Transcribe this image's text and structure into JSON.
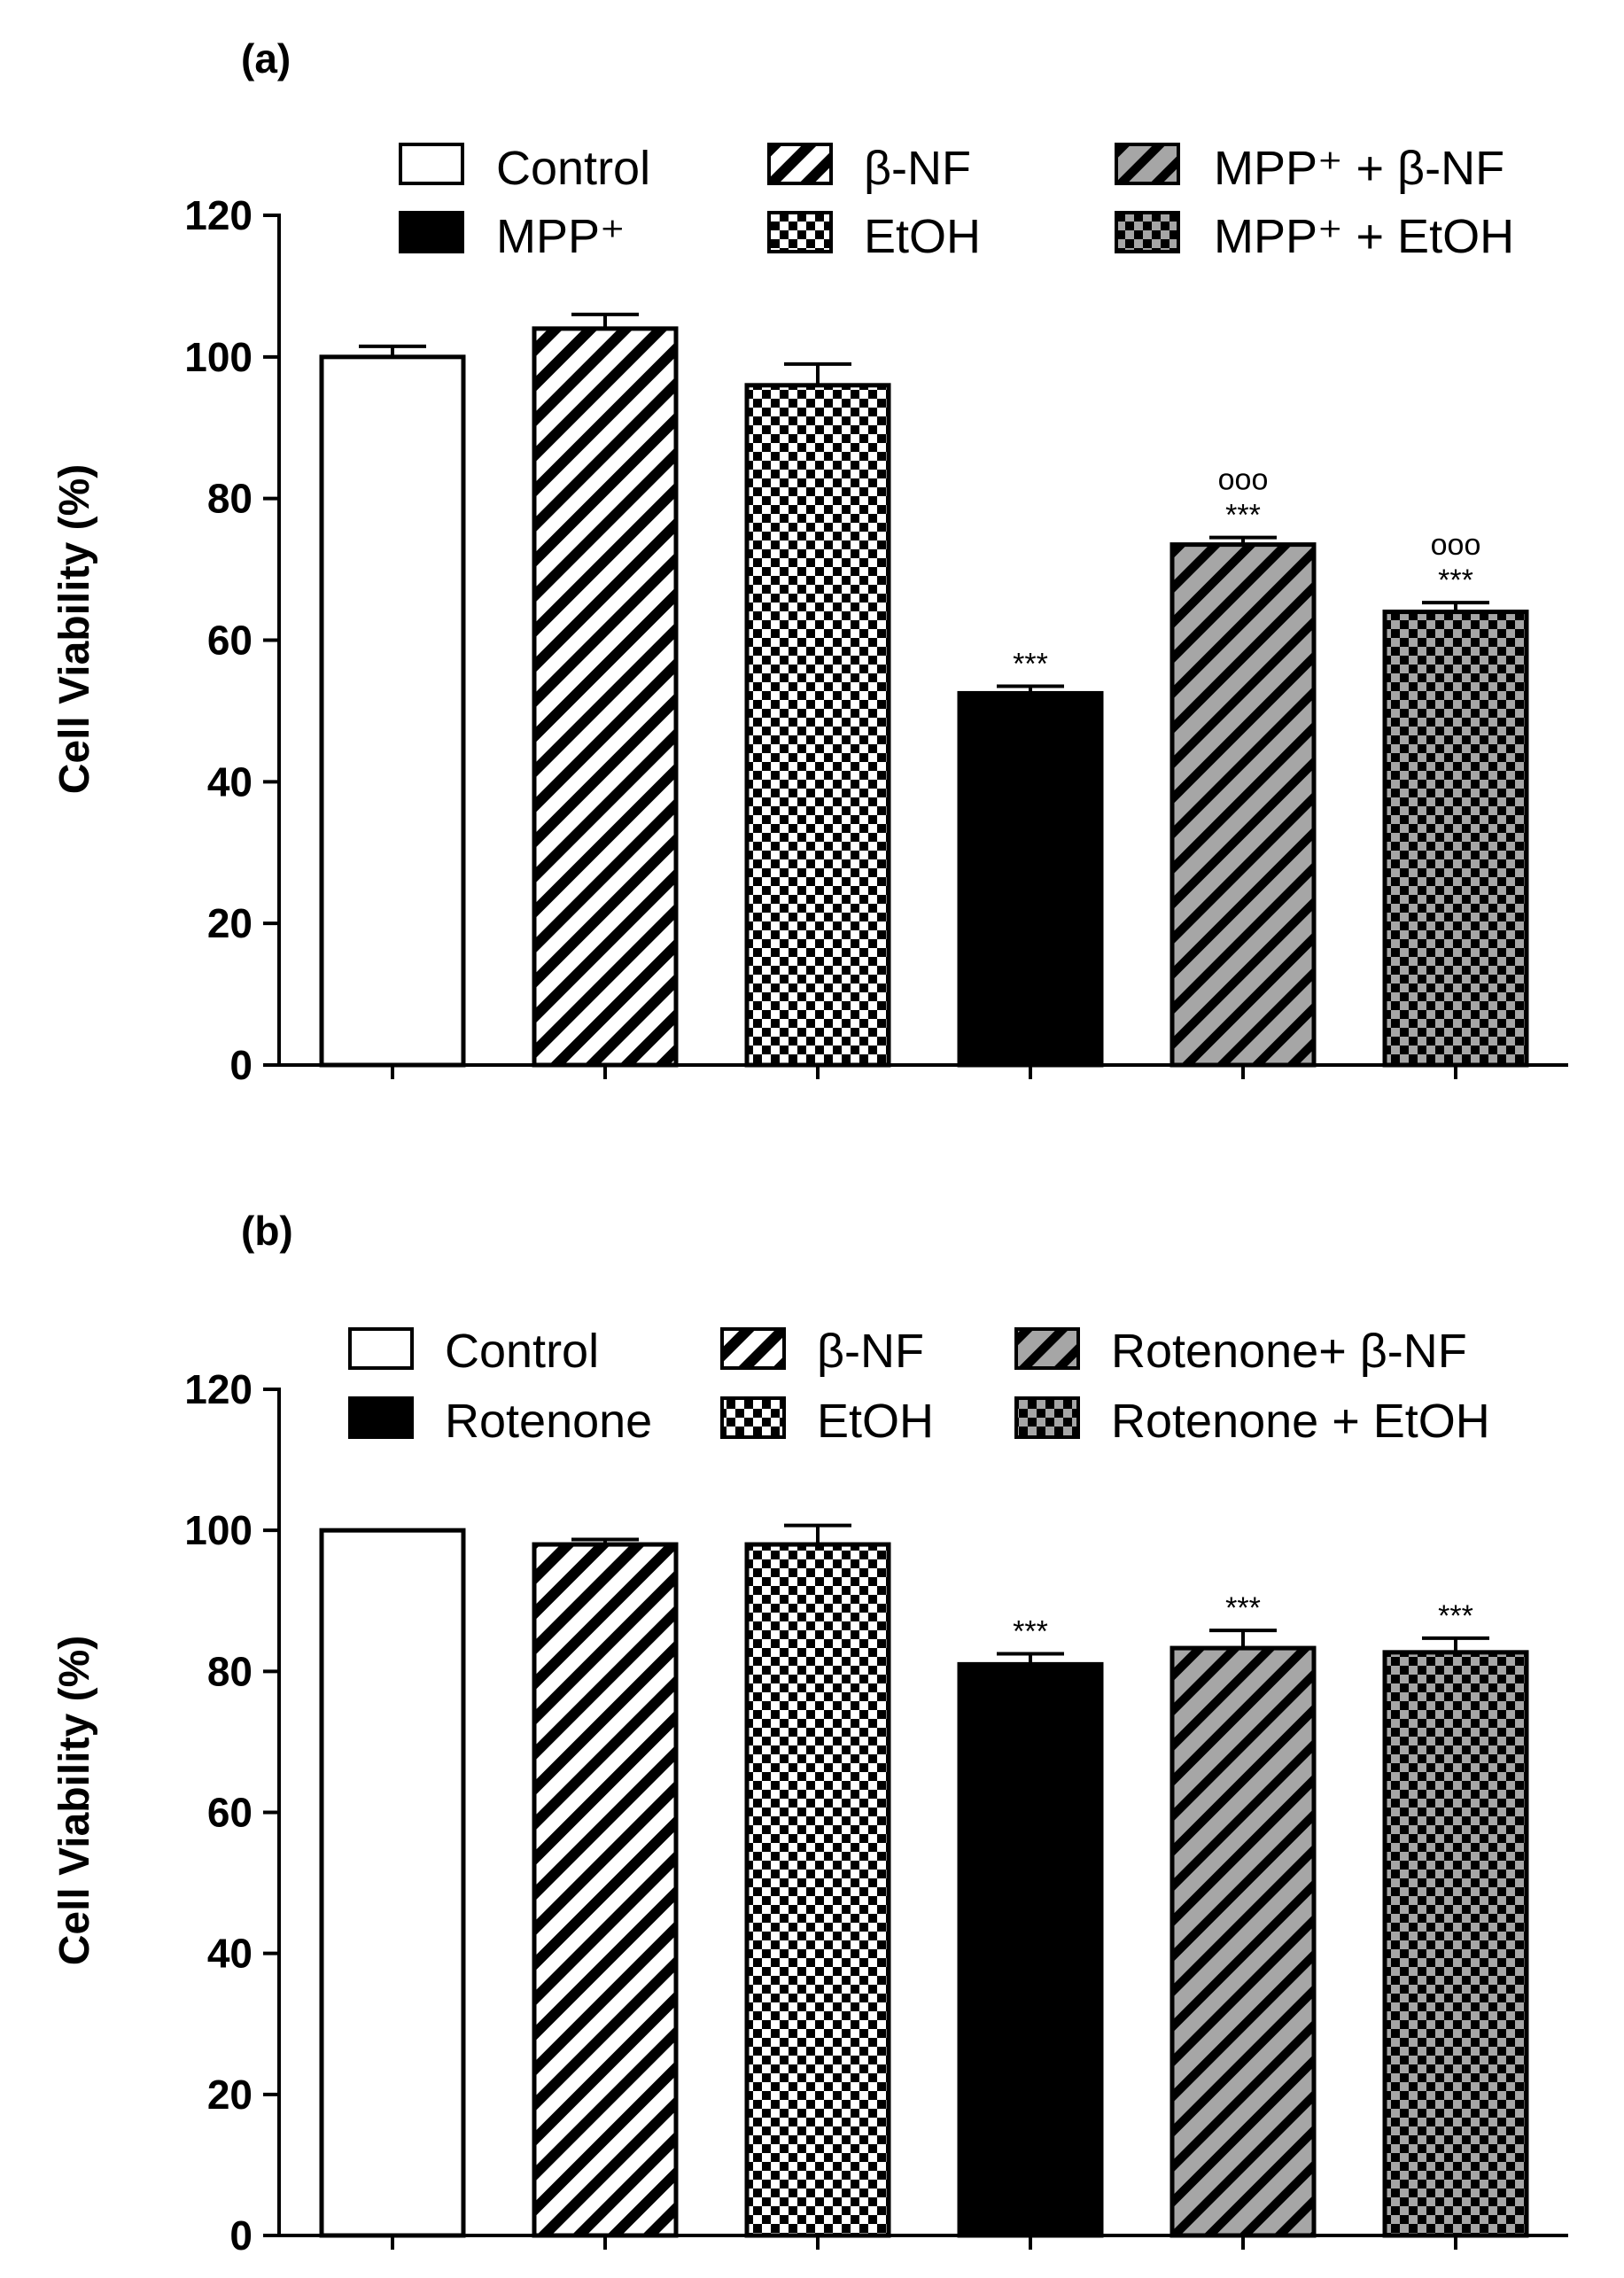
{
  "chart_data": [
    {
      "type": "bar",
      "panel_label": "(a)",
      "ylabel": "Cell Viability (%)",
      "ylim": [
        0,
        120
      ],
      "yticks": [
        0,
        20,
        40,
        60,
        80,
        100,
        120
      ],
      "legend": {
        "placement": "top",
        "entries": [
          {
            "label": "Control",
            "pattern": "white"
          },
          {
            "label": "MPP⁺",
            "pattern": "black"
          },
          {
            "label": "β-NF",
            "pattern": "hatch"
          },
          {
            "label": "EtOH",
            "pattern": "checker"
          },
          {
            "label": "MPP⁺ + β-NF",
            "pattern": "grayhatch"
          },
          {
            "label": "MPP⁺ + EtOH",
            "pattern": "graychecker"
          }
        ]
      },
      "bars": [
        {
          "pattern": "white",
          "value": 100,
          "error": 1.5,
          "annotation": []
        },
        {
          "pattern": "hatch",
          "value": 104,
          "error": 2.0,
          "annotation": []
        },
        {
          "pattern": "checker",
          "value": 96,
          "error": 3.0,
          "annotation": []
        },
        {
          "pattern": "black",
          "value": 52.5,
          "error": 1.0,
          "annotation": [
            "***"
          ]
        },
        {
          "pattern": "grayhatch",
          "value": 73.5,
          "error": 1.0,
          "annotation": [
            "ooo",
            "***"
          ]
        },
        {
          "pattern": "graychecker",
          "value": 64,
          "error": 1.3,
          "annotation": [
            "ooo",
            "***"
          ]
        }
      ]
    },
    {
      "type": "bar",
      "panel_label": "(b)",
      "ylabel": "Cell Viability (%)",
      "ylim": [
        0,
        120
      ],
      "yticks": [
        0,
        20,
        40,
        60,
        80,
        100,
        120
      ],
      "legend": {
        "placement": "top",
        "entries": [
          {
            "label": "Control",
            "pattern": "white"
          },
          {
            "label": "Rotenone",
            "pattern": "black"
          },
          {
            "label": "β-NF",
            "pattern": "hatch"
          },
          {
            "label": "EtOH",
            "pattern": "checker"
          },
          {
            "label": "Rotenone+ β-NF",
            "pattern": "grayhatch"
          },
          {
            "label": "Rotenone + EtOH",
            "pattern": "graychecker"
          }
        ]
      },
      "bars": [
        {
          "pattern": "white",
          "value": 100,
          "error": 0,
          "annotation": []
        },
        {
          "pattern": "hatch",
          "value": 98,
          "error": 0.7,
          "annotation": []
        },
        {
          "pattern": "checker",
          "value": 98,
          "error": 2.7,
          "annotation": []
        },
        {
          "pattern": "black",
          "value": 81,
          "error": 1.5,
          "annotation": [
            "***"
          ]
        },
        {
          "pattern": "grayhatch",
          "value": 83.3,
          "error": 2.5,
          "annotation": [
            "***"
          ]
        },
        {
          "pattern": "graychecker",
          "value": 82.7,
          "error": 2.0,
          "annotation": [
            "***"
          ]
        }
      ]
    }
  ]
}
